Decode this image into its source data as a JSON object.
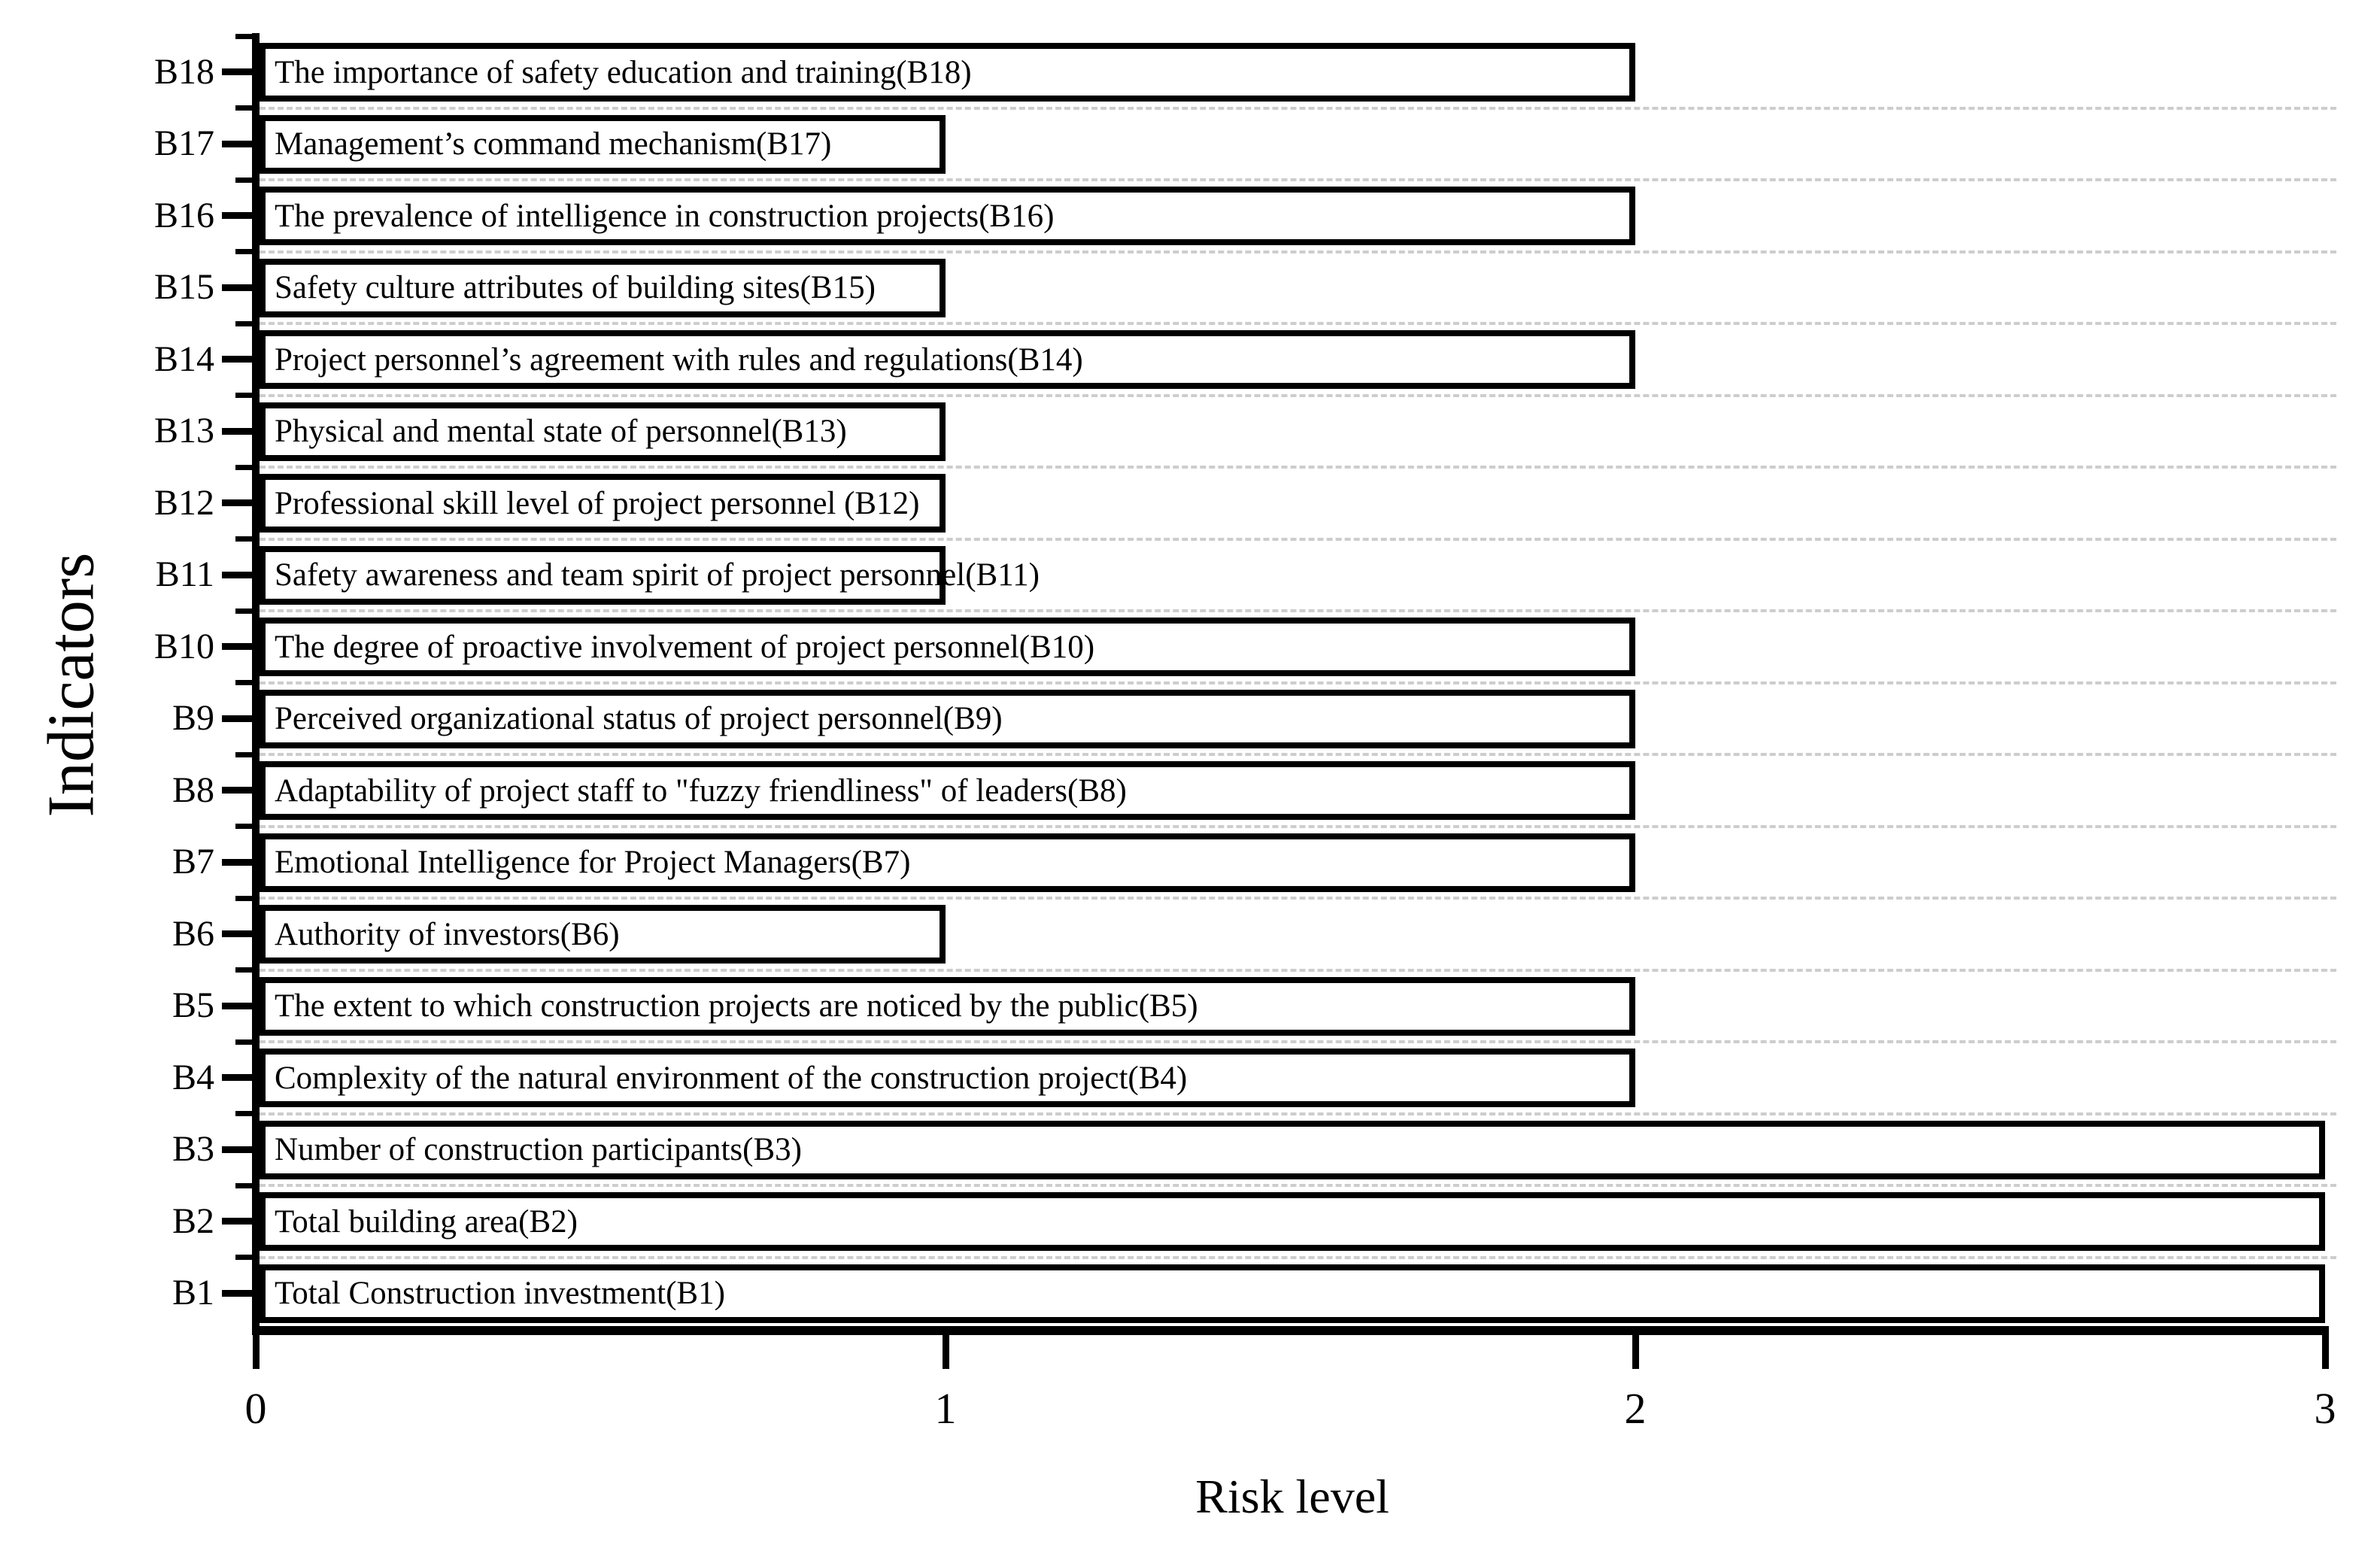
{
  "chart_data": {
    "type": "bar",
    "orientation": "horizontal",
    "title": "",
    "xlabel": "Risk level",
    "ylabel": "Indicators",
    "xlim": [
      0,
      3
    ],
    "xticks": [
      "0",
      "1",
      "2",
      "3"
    ],
    "grid": "horizontal dashed gridlines at row boundaries",
    "legend": "none",
    "bar_fill": "#ffffff",
    "bar_border": "#000000",
    "gridline_color": "#cdcdcd",
    "text_color": "#000000",
    "categories_bottom_to_top": [
      "B1",
      "B2",
      "B3",
      "B4",
      "B5",
      "B6",
      "B7",
      "B8",
      "B9",
      "B10",
      "B11",
      "B12",
      "B13",
      "B14",
      "B15",
      "B16",
      "B17",
      "B18"
    ],
    "rows": [
      {
        "tick": "B18",
        "value": 2,
        "label": "The importance of safety education and training(B18)"
      },
      {
        "tick": "B17",
        "value": 1,
        "label": "Management’s command mechanism(B17)"
      },
      {
        "tick": "B16",
        "value": 2,
        "label": "The prevalence of intelligence in construction projects(B16)"
      },
      {
        "tick": "B15",
        "value": 1,
        "label": "Safety culture attributes of building sites(B15)"
      },
      {
        "tick": "B14",
        "value": 2,
        "label": "Project personnel’s agreement with rules and regulations(B14)"
      },
      {
        "tick": "B13",
        "value": 1,
        "label": "Physical and mental state of personnel(B13)"
      },
      {
        "tick": "B12",
        "value": 1,
        "label": "Professional skill level of project personnel (B12)"
      },
      {
        "tick": "B11",
        "value": 1,
        "label": "Safety awareness and team spirit of project personnel(B11)"
      },
      {
        "tick": "B10",
        "value": 2,
        "label": "The degree of proactive involvement of project personnel(B10)"
      },
      {
        "tick": "B9",
        "value": 2,
        "label": "Perceived organizational status of project personnel(B9)"
      },
      {
        "tick": "B8",
        "value": 2,
        "label": "Adaptability of project staff to \"fuzzy friendliness\" of leaders(B8)"
      },
      {
        "tick": "B7",
        "value": 2,
        "label": "Emotional Intelligence for Project Managers(B7)"
      },
      {
        "tick": "B6",
        "value": 1,
        "label": "Authority of investors(B6)"
      },
      {
        "tick": "B5",
        "value": 2,
        "label": "The extent to which construction projects are noticed by the public(B5)"
      },
      {
        "tick": "B4",
        "value": 2,
        "label": "Complexity of the natural environment of the construction project(B4)"
      },
      {
        "tick": "B3",
        "value": 3,
        "label": "Number of construction participants(B3)"
      },
      {
        "tick": "B2",
        "value": 3,
        "label": "Total building area(B2)"
      },
      {
        "tick": "B1",
        "value": 3,
        "label": "Total Construction investment(B1)"
      }
    ]
  }
}
